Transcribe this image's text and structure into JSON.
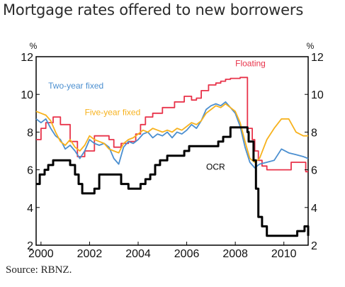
{
  "title": "Mortgage rates offered to new borrowers",
  "source": "Source: RBNZ.",
  "chart_data": {
    "type": "line",
    "title": "Mortgage rates offered to new borrowers",
    "y_unit_left": "%",
    "y_unit_right": "%",
    "xlim": [
      1999.8,
      2011.0
    ],
    "ylim": [
      2,
      12
    ],
    "x_ticks": [
      2000,
      2002,
      2004,
      2006,
      2008,
      2010
    ],
    "x_tick_labels": [
      "2000",
      "2002",
      "2004",
      "2006",
      "2008",
      "2010"
    ],
    "y_ticks": [
      2,
      4,
      6,
      8,
      10,
      12
    ],
    "y_tick_labels": [
      "2",
      "4",
      "6",
      "8",
      "10",
      "12"
    ],
    "grid": false,
    "series": [
      {
        "name": "Floating",
        "color": "#e8334a",
        "step": true,
        "x": [
          1999.8,
          2000.0,
          2000.2,
          2000.5,
          2000.8,
          2001.2,
          2001.5,
          2001.8,
          2002.2,
          2002.5,
          2002.8,
          2003.0,
          2003.3,
          2003.6,
          2003.9,
          2004.1,
          2004.3,
          2004.6,
          2005.0,
          2005.5,
          2005.9,
          2006.2,
          2006.4,
          2006.6,
          2006.9,
          2007.2,
          2007.4,
          2007.6,
          2007.8,
          2008.2,
          2008.5,
          2008.7,
          2008.8,
          2008.95,
          2009.1,
          2009.3,
          2010.0,
          2010.3,
          2010.9,
          2011.0
        ],
        "y": [
          7.6,
          8.2,
          8.5,
          8.8,
          8.4,
          7.5,
          6.7,
          7.0,
          7.8,
          7.8,
          7.6,
          7.2,
          7.4,
          7.5,
          7.9,
          8.4,
          8.8,
          9.0,
          9.3,
          9.6,
          9.9,
          9.7,
          9.8,
          10.2,
          10.5,
          10.6,
          10.7,
          10.8,
          10.85,
          10.9,
          8.2,
          7.6,
          7.0,
          6.5,
          6.2,
          6.0,
          6.0,
          6.4,
          5.9,
          5.9
        ]
      },
      {
        "name": "Two-year fixed",
        "color": "#4b8fd0",
        "x": [
          1999.8,
          2000.0,
          2000.2,
          2000.4,
          2000.6,
          2000.8,
          2001.0,
          2001.2,
          2001.4,
          2001.6,
          2001.8,
          2002.0,
          2002.2,
          2002.4,
          2002.6,
          2002.8,
          2003.0,
          2003.2,
          2003.4,
          2003.6,
          2003.8,
          2004.0,
          2004.2,
          2004.4,
          2004.6,
          2004.8,
          2005.0,
          2005.2,
          2005.4,
          2005.6,
          2005.8,
          2006.0,
          2006.2,
          2006.4,
          2006.6,
          2006.8,
          2007.0,
          2007.2,
          2007.4,
          2007.6,
          2007.8,
          2008.0,
          2008.2,
          2008.4,
          2008.6,
          2008.8,
          2009.0,
          2009.3,
          2009.6,
          2009.9,
          2010.2,
          2010.5,
          2010.8,
          2011.0
        ],
        "y": [
          8.7,
          8.5,
          8.7,
          8.2,
          7.8,
          7.6,
          7.1,
          7.3,
          7.0,
          6.6,
          7.0,
          7.6,
          7.4,
          7.3,
          7.4,
          7.2,
          6.6,
          6.3,
          7.2,
          7.5,
          7.4,
          7.6,
          7.9,
          8.0,
          7.7,
          7.9,
          7.8,
          8.0,
          7.7,
          8.0,
          7.9,
          8.1,
          8.4,
          8.2,
          8.6,
          9.2,
          9.4,
          9.5,
          9.4,
          9.6,
          9.3,
          9.0,
          8.3,
          7.2,
          6.4,
          6.1,
          6.3,
          6.4,
          6.5,
          7.1,
          6.9,
          6.8,
          6.7,
          6.6
        ]
      },
      {
        "name": "Five-year fixed",
        "color": "#f7b21e",
        "x": [
          1999.8,
          2000.0,
          2000.2,
          2000.4,
          2000.6,
          2000.8,
          2001.0,
          2001.2,
          2001.4,
          2001.6,
          2001.8,
          2002.0,
          2002.2,
          2002.4,
          2002.6,
          2002.8,
          2003.0,
          2003.2,
          2003.4,
          2003.6,
          2003.8,
          2004.0,
          2004.2,
          2004.4,
          2004.6,
          2004.8,
          2005.0,
          2005.2,
          2005.4,
          2005.6,
          2005.8,
          2006.0,
          2006.2,
          2006.4,
          2006.6,
          2006.8,
          2007.0,
          2007.2,
          2007.4,
          2007.6,
          2007.8,
          2008.0,
          2008.2,
          2008.4,
          2008.6,
          2008.8,
          2009.0,
          2009.3,
          2009.6,
          2009.9,
          2010.2,
          2010.5,
          2010.8,
          2011.0
        ],
        "y": [
          9.1,
          9.0,
          8.9,
          8.6,
          8.0,
          7.5,
          7.3,
          7.6,
          7.2,
          7.0,
          7.3,
          7.8,
          7.6,
          7.5,
          7.4,
          7.1,
          7.0,
          6.9,
          7.4,
          7.6,
          7.7,
          7.9,
          8.1,
          8.0,
          8.2,
          8.1,
          8.0,
          8.1,
          8.0,
          8.2,
          8.1,
          8.3,
          8.5,
          8.4,
          8.6,
          9.0,
          9.2,
          9.4,
          9.3,
          9.5,
          9.3,
          9.1,
          8.5,
          7.5,
          6.6,
          6.4,
          6.6,
          7.6,
          8.2,
          8.7,
          8.7,
          8.0,
          7.8,
          7.8
        ]
      },
      {
        "name": "OCR",
        "color": "#000000",
        "step": true,
        "x": [
          1999.8,
          1999.95,
          2000.15,
          2000.3,
          2000.5,
          2001.2,
          2001.4,
          2001.55,
          2001.7,
          2001.9,
          2002.2,
          2002.4,
          2003.0,
          2003.3,
          2003.6,
          2003.9,
          2004.1,
          2004.3,
          2004.5,
          2004.7,
          2004.9,
          2005.2,
          2005.9,
          2006.1,
          2006.3,
          2006.5,
          2007.0,
          2007.3,
          2007.5,
          2007.8,
          2008.0,
          2008.3,
          2008.5,
          2008.55,
          2008.75,
          2008.85,
          2008.95,
          2009.1,
          2009.3,
          2010.4,
          2010.55,
          2010.85,
          2011.0
        ],
        "y": [
          5.25,
          5.75,
          6.0,
          6.25,
          6.5,
          6.25,
          5.75,
          5.25,
          4.75,
          4.75,
          5.0,
          5.75,
          5.75,
          5.25,
          5.0,
          5.0,
          5.25,
          5.5,
          5.75,
          6.25,
          6.5,
          6.75,
          7.0,
          7.25,
          7.25,
          7.25,
          7.25,
          7.5,
          7.75,
          8.25,
          8.25,
          8.25,
          8.0,
          7.5,
          6.5,
          5.0,
          3.5,
          3.0,
          2.5,
          2.5,
          2.75,
          3.0,
          2.5
        ]
      }
    ],
    "annotations": [
      {
        "text": "Floating",
        "color": "#e8334a",
        "x": 2008.0,
        "y": 11.5
      },
      {
        "text": "Two-year fixed",
        "color": "#4b8fd0",
        "x": 2000.3,
        "y": 10.3
      },
      {
        "text": "Five-year fixed",
        "color": "#f7b21e",
        "x": 2001.8,
        "y": 8.9
      },
      {
        "text": "OCR",
        "color": "#000000",
        "x": 2006.8,
        "y": 6.0
      }
    ]
  }
}
